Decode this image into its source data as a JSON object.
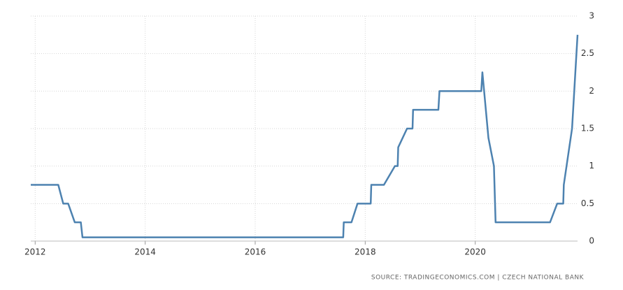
{
  "chart_data": {
    "type": "line",
    "x": [
      2011.92,
      2012.42,
      2012.51,
      2012.6,
      2012.72,
      2012.83,
      2012.86,
      2017.6,
      2017.61,
      2017.75,
      2017.86,
      2018.1,
      2018.11,
      2018.34,
      2018.54,
      2018.59,
      2018.6,
      2018.76,
      2018.86,
      2018.87,
      2019.33,
      2019.35,
      2020.11,
      2020.13,
      2020.24,
      2020.34,
      2020.37,
      2021.36,
      2021.49,
      2021.6,
      2021.61,
      2021.76,
      2021.86
    ],
    "values": [
      0.75,
      0.75,
      0.5,
      0.5,
      0.25,
      0.25,
      0.05,
      0.05,
      0.25,
      0.25,
      0.5,
      0.5,
      0.75,
      0.75,
      1,
      1,
      1.25,
      1.5,
      1.5,
      1.75,
      1.75,
      2,
      2,
      2.25,
      1.375,
      1,
      0.25,
      0.25,
      0.5,
      0.5,
      0.75,
      1.5,
      2.75
    ],
    "color": "#4d82b0",
    "xlim": [
      2011.92,
      2021.86
    ],
    "xticks": [
      2012,
      2014,
      2016,
      2018,
      2020
    ],
    "ylim": [
      0,
      3
    ],
    "yticks": [
      0,
      0.5,
      1,
      1.5,
      2,
      2.5,
      3
    ],
    "grid": true,
    "source": "SOURCE: TRADINGECONOMICS.COM | CZECH NATIONAL BANK"
  }
}
